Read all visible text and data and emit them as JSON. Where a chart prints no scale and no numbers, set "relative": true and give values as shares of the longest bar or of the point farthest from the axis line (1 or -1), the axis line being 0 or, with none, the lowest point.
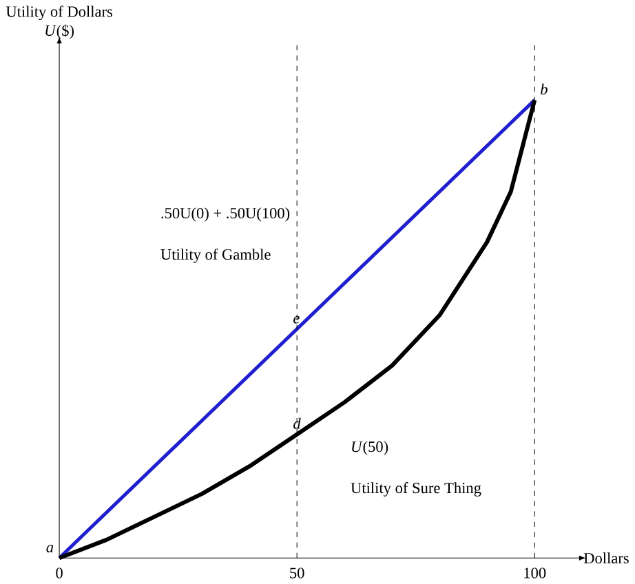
{
  "chart_data": {
    "type": "line",
    "relative": true,
    "xlabel": "Dollars",
    "ylabel": "Utility of Dollars *U*($)",
    "xlim": [
      0,
      109
    ],
    "xticks": [
      0,
      50,
      100
    ],
    "tick_labels": "x",
    "grid": false,
    "marker": "none",
    "series": [
      {
        "color": "#1f1fd0",
        "x": [
          0,
          100
        ],
        "values": [
          0,
          1
        ]
      },
      {
        "color": "#000000",
        "x": [
          0,
          10,
          20,
          30,
          40,
          50,
          60,
          70,
          80,
          90,
          95,
          100
        ],
        "values": [
          0,
          0.04,
          0.09,
          0.14,
          0.2,
          0.27,
          0.34,
          0.42,
          0.53,
          0.69,
          0.8,
          1
        ]
      }
    ],
    "ref_lines": [
      {
        "axis": "x",
        "value": 50,
        "line_style": "dashed",
        "color": "#000000"
      },
      {
        "axis": "x",
        "value": 100,
        "line_style": "dashed",
        "color": "#000000"
      }
    ],
    "annotations": [
      {
        "text": "a",
        "x": 0,
        "y": 0
      },
      {
        "text": "b",
        "x": 100,
        "y": 1
      },
      {
        "text": "e",
        "x": 48,
        "y": 0.5
      },
      {
        "text": "d",
        "x": 48,
        "y": 0.27
      },
      ".50U(0) + .50U(100)",
      "Utility of Gamble",
      "*U*(50)",
      "Utility of Sure Thing"
    ]
  }
}
